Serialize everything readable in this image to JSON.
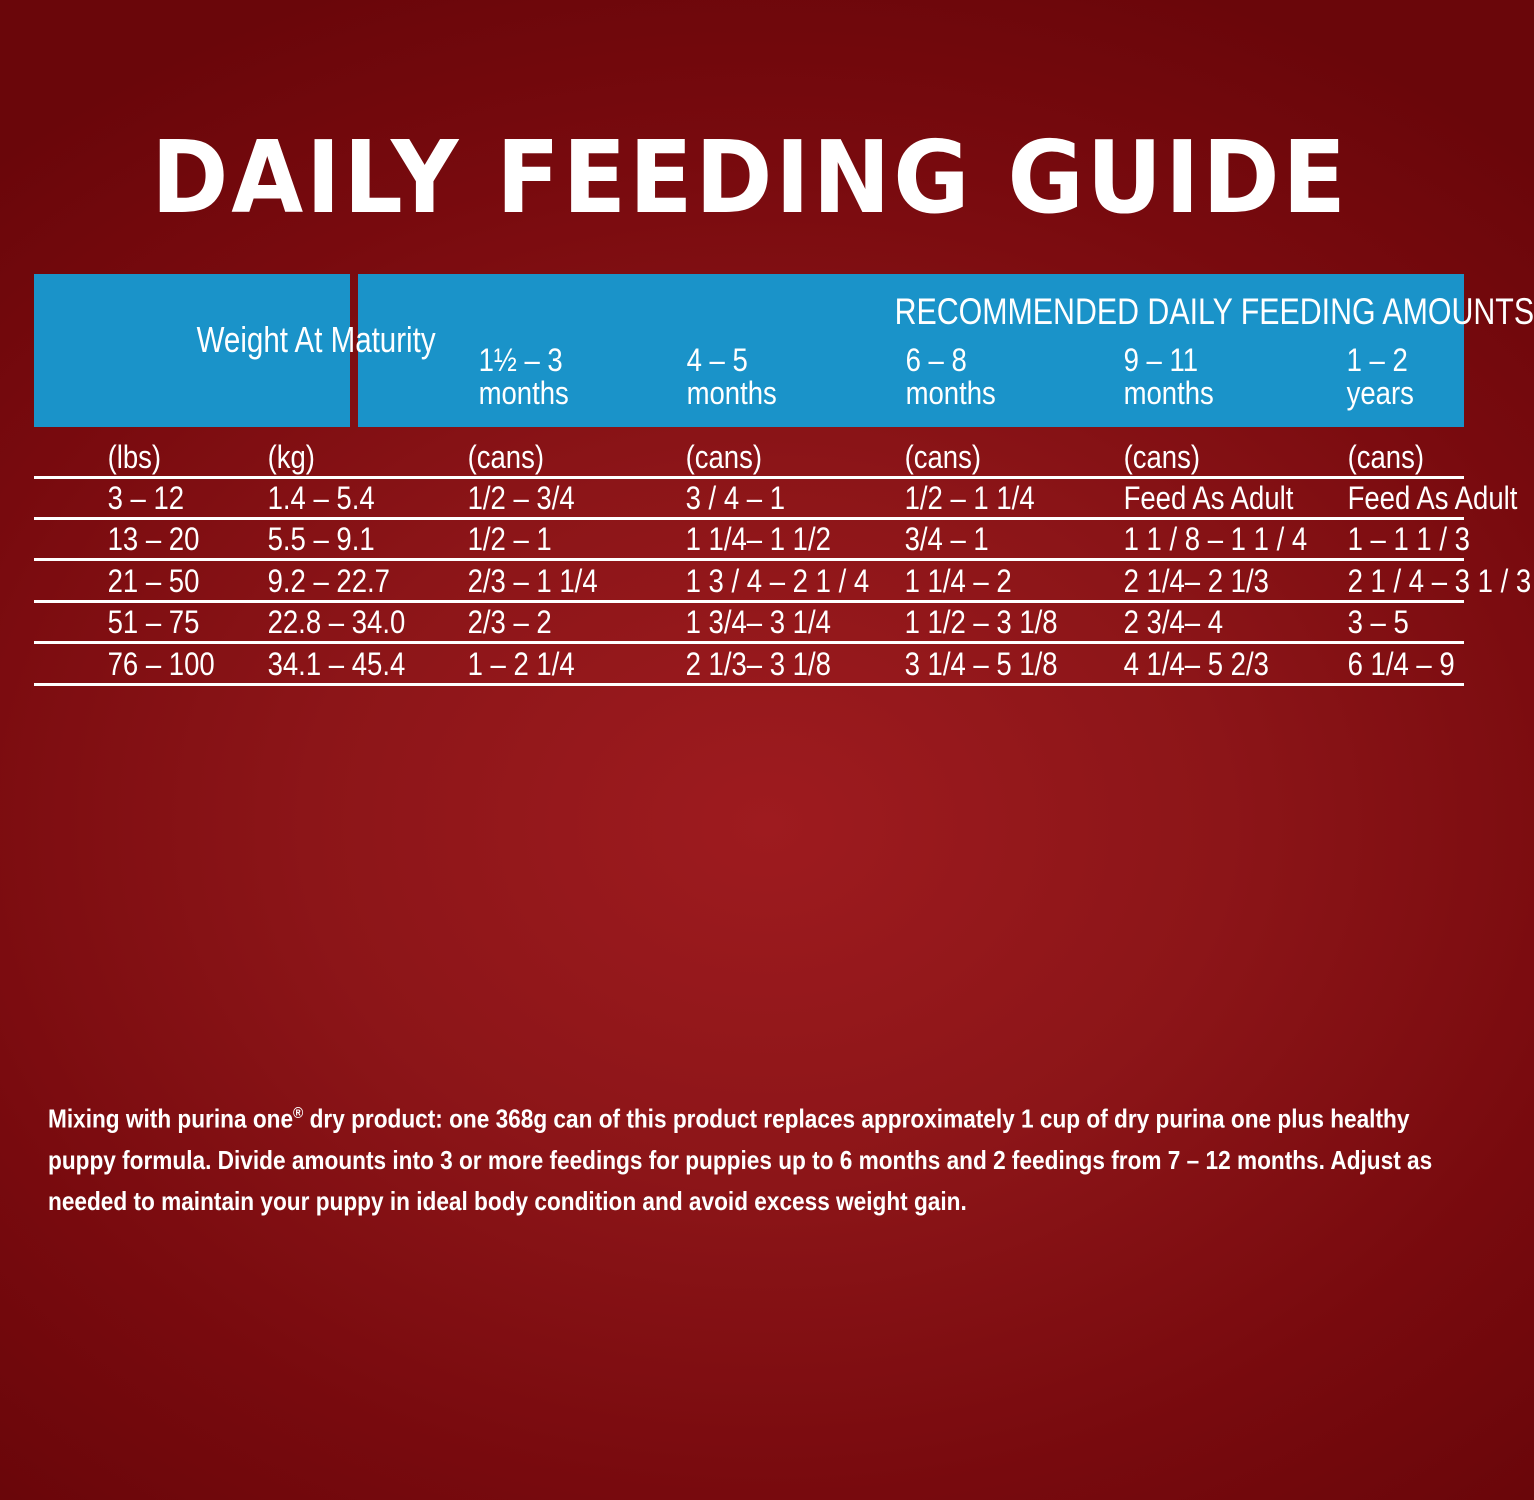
{
  "title": "DAILY FEEDING GUIDE",
  "header": {
    "weight_label": "Weight At Maturity",
    "amounts_label": "RECOMMENDED DAILY FEEDING AMOUNTS",
    "ages": [
      {
        "line1": "1½ – 3",
        "line2": "months"
      },
      {
        "line1": "4 – 5",
        "line2": "months"
      },
      {
        "line1": "6 – 8",
        "line2": "months"
      },
      {
        "line1": "9 – 11",
        "line2": "months"
      },
      {
        "line1": "1 – 2",
        "line2": "years"
      }
    ]
  },
  "units": [
    "(lbs)",
    "(kg)",
    "(cans)",
    "(cans)",
    "(cans)",
    "(cans)",
    "(cans)"
  ],
  "rows": [
    [
      "3 – 12",
      "1.4 – 5.4",
      "1/2 –  3/4",
      "3 / 4 – 1",
      "1/2 – 1 1/4",
      "Feed As Adult",
      "Feed As Adult"
    ],
    [
      "13  – 20",
      "5.5 – 9.1",
      "1/2 – 1",
      "1 1/4– 1 1/2",
      "3/4 – 1",
      "1 1 / 8 – 1 1 / 4",
      "1 – 1  1 / 3"
    ],
    [
      "21  – 50",
      "9.2 – 22.7",
      "2/3 – 1 1/4",
      "1 3 / 4 – 2 1 / 4",
      "1 1/4 – 2",
      "2 1/4– 2 1/3",
      "2  1 / 4 – 3 1 / 3"
    ],
    [
      "51 – 75",
      "22.8 – 34.0",
      "2/3 – 2",
      "1 3/4– 3 1/4",
      "1 1/2 – 3 1/8",
      "2 3/4– 4",
      "3 – 5"
    ],
    [
      "76  – 100",
      "34.1 – 45.4",
      "1 – 2 1/4",
      "2 1/3– 3 1/8",
      "3 1/4 – 5 1/8",
      "4 1/4– 5 2/3",
      "6 1/4 – 9"
    ]
  ],
  "footnote": {
    "part1": "Mixing with purina one",
    "reg": "®",
    "part2": " dry product: one 368g can of this product replaces approximately 1 cup of dry purina one plus healthy puppy formula. Divide amounts into 3 or more feedings for puppies up to 6 months and 2 feedings from 7 – 12 months. Adjust as needed to maintain your puppy in ideal body condition and avoid excess weight gain."
  }
}
